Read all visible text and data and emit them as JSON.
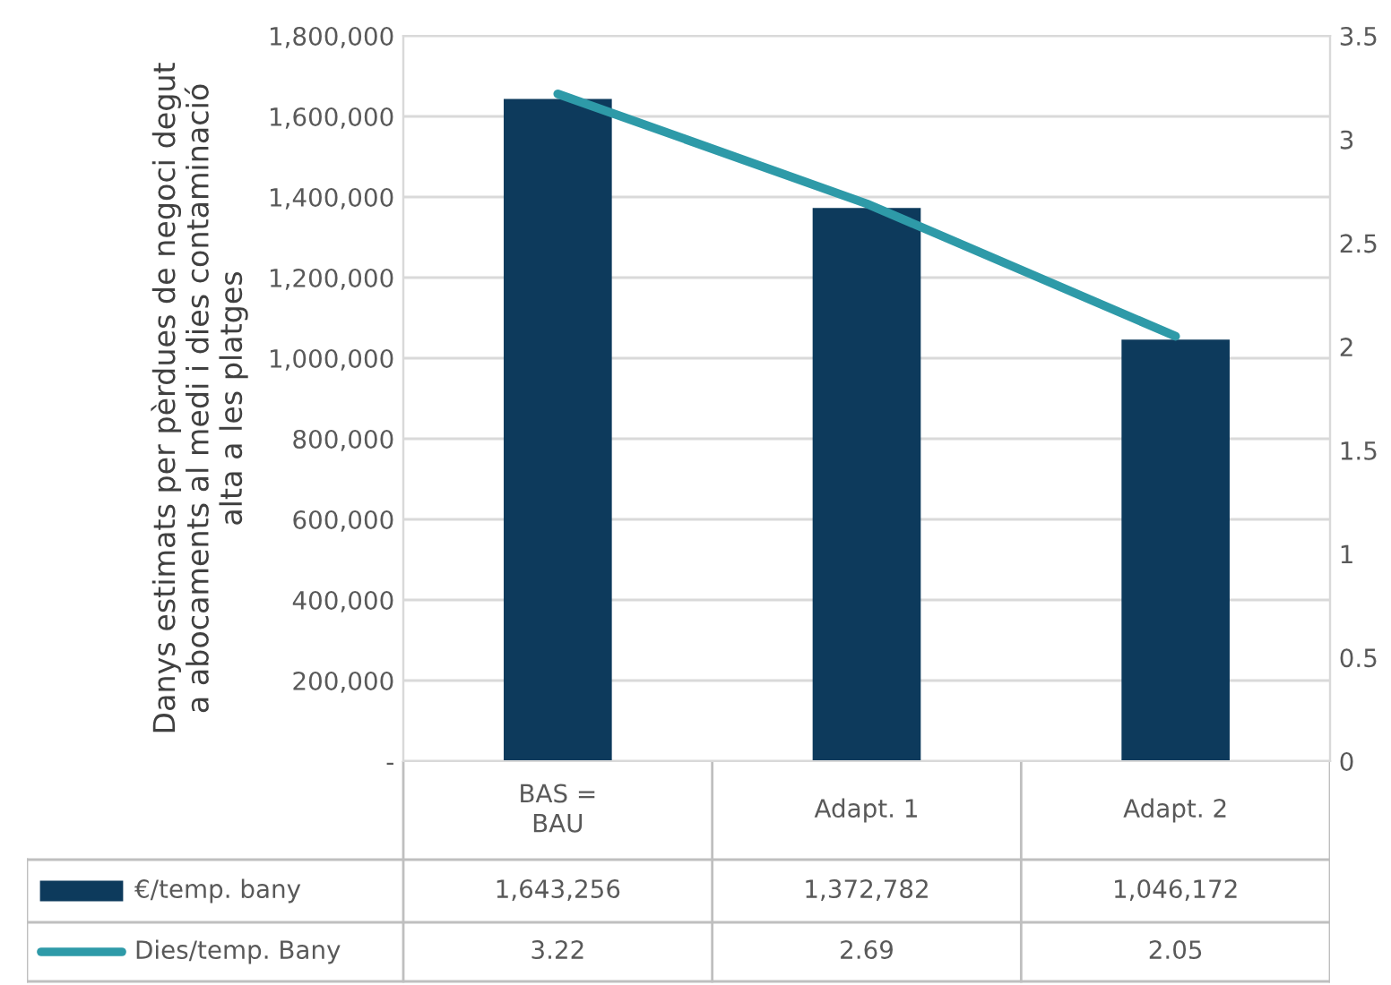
{
  "chart_data": {
    "type": "bar",
    "ylabel": "Danys estimats per pèrdues de negoci degut\na abocaments al medi i dies contaminació\nalta a les platges",
    "categories": [
      "BAS =\nBAU",
      "Adapt. 1",
      "Adapt. 2"
    ],
    "series": [
      {
        "name": "€/temp. bany",
        "color": "#0d3a5c",
        "values": [
          1643256,
          1372782,
          1046172
        ],
        "value_labels": [
          "1,643,256",
          "1,372,782",
          "1,046,172"
        ]
      },
      {
        "name": "Dies/temp. Bany",
        "type": "line",
        "axis": "y2",
        "color": "#2e9aa8",
        "values": [
          3.22,
          2.69,
          2.05
        ],
        "value_labels": [
          "3.22",
          "2.69",
          "2.05"
        ]
      }
    ],
    "ylim": [
      0,
      1800000
    ],
    "yticks": [
      {
        "value": 0,
        "label": "-"
      },
      {
        "value": 200000,
        "label": "200,000"
      },
      {
        "value": 400000,
        "label": "400,000"
      },
      {
        "value": 600000,
        "label": "600,000"
      },
      {
        "value": 800000,
        "label": "800,000"
      },
      {
        "value": 1000000,
        "label": "1,000,000"
      },
      {
        "value": 1200000,
        "label": "1,200,000"
      },
      {
        "value": 1400000,
        "label": "1,400,000"
      },
      {
        "value": 1600000,
        "label": "1,600,000"
      },
      {
        "value": 1800000,
        "label": "1,800,000"
      }
    ],
    "y2lim": [
      0,
      3.5
    ],
    "y2ticks": [
      0,
      0.5,
      1,
      1.5,
      2,
      2.5,
      3,
      3.5
    ],
    "grid": "y",
    "legend": "bottom",
    "marker": "none"
  }
}
